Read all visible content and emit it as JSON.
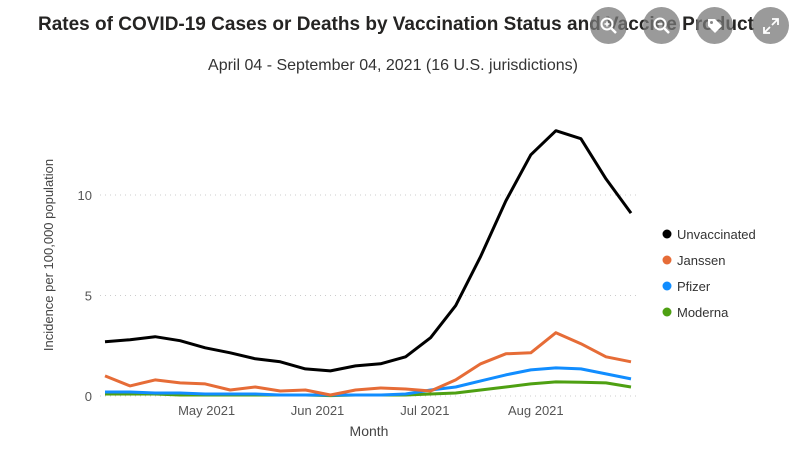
{
  "chart_data": {
    "type": "line",
    "title": "Rates of COVID-19 Cases or Deaths by Vaccination Status and Vaccine Product",
    "subtitle": "April 04 - September 04, 2021 (16 U.S. jurisdictions)",
    "xlabel": "Month",
    "ylabel": "Incidence per 100,000 population",
    "x_ticks": [
      "May 2021",
      "Jun 2021",
      "Jul 2021",
      "Aug 2021"
    ],
    "y_ticks": [
      "0",
      "5",
      "10"
    ],
    "ylim": [
      0,
      14.5
    ],
    "grid": "horizontal dotted",
    "legend_placement": "right",
    "x": [
      "2021-04-04",
      "2021-04-11",
      "2021-04-18",
      "2021-04-25",
      "2021-05-02",
      "2021-05-09",
      "2021-05-16",
      "2021-05-23",
      "2021-05-30",
      "2021-06-06",
      "2021-06-13",
      "2021-06-20",
      "2021-06-27",
      "2021-07-04",
      "2021-07-11",
      "2021-07-18",
      "2021-07-25",
      "2021-08-01",
      "2021-08-08",
      "2021-08-15",
      "2021-08-22",
      "2021-08-29"
    ],
    "series": [
      {
        "name": "Unvaccinated",
        "color": "#000000",
        "values": [
          2.7,
          2.8,
          2.95,
          2.75,
          2.4,
          2.15,
          1.85,
          1.7,
          1.35,
          1.25,
          1.5,
          1.6,
          1.95,
          2.9,
          4.5,
          6.95,
          9.7,
          12.0,
          13.2,
          12.8,
          10.8,
          9.1
        ]
      },
      {
        "name": "Janssen",
        "color": "#E66C37",
        "values": [
          1.0,
          0.5,
          0.8,
          0.65,
          0.6,
          0.3,
          0.45,
          0.25,
          0.3,
          0.05,
          0.3,
          0.4,
          0.35,
          0.25,
          0.8,
          1.6,
          2.1,
          2.15,
          3.15,
          2.6,
          1.95,
          1.7
        ]
      },
      {
        "name": "Pfizer",
        "color": "#118DFF",
        "values": [
          0.2,
          0.2,
          0.15,
          0.15,
          0.1,
          0.1,
          0.1,
          0.05,
          0.05,
          0.05,
          0.05,
          0.05,
          0.1,
          0.3,
          0.45,
          0.75,
          1.05,
          1.3,
          1.4,
          1.35,
          1.1,
          0.85
        ]
      },
      {
        "name": "Moderna",
        "color": "#4EA012",
        "values": [
          0.1,
          0.1,
          0.1,
          0.05,
          0.05,
          0.05,
          0.05,
          0.05,
          0.05,
          0.02,
          0.05,
          0.05,
          0.05,
          0.1,
          0.15,
          0.3,
          0.45,
          0.6,
          0.7,
          0.68,
          0.65,
          0.45
        ]
      }
    ]
  },
  "overlay": {
    "icons": [
      "zoom-in-icon",
      "zoom-out-icon",
      "tag-icon",
      "expand-icon"
    ]
  }
}
